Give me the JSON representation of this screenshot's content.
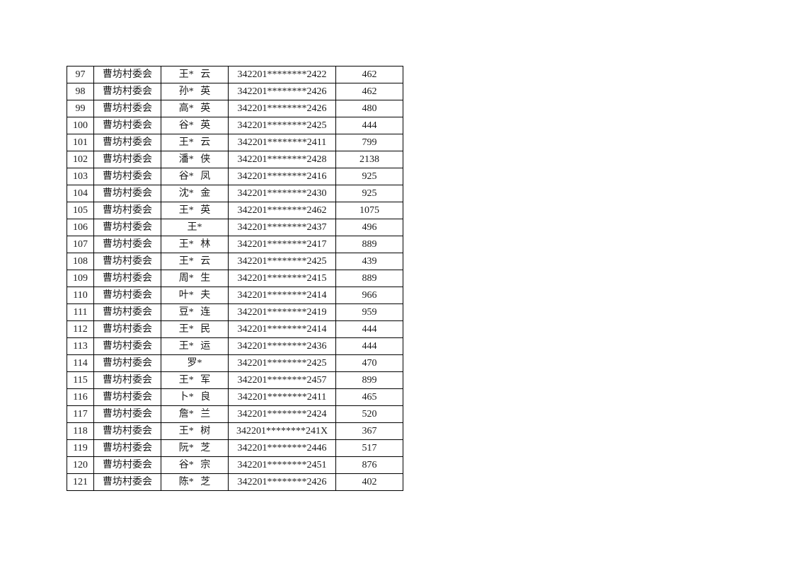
{
  "page": {
    "background_color": "#ffffff",
    "text_color": "#1a1a1a",
    "border_color": "#000000"
  },
  "table": {
    "village_name": "曹坊村委会",
    "row_number_range": {
      "first": "97",
      "last": "121"
    },
    "rows": [
      {
        "num": "97",
        "village": "曹坊村委会",
        "name": "王* 云",
        "id": "342201********2422",
        "amount": "462"
      },
      {
        "num": "98",
        "village": "曹坊村委会",
        "name": "孙* 英",
        "id": "342201********2426",
        "amount": "462"
      },
      {
        "num": "99",
        "village": "曹坊村委会",
        "name": "高* 英",
        "id": "342201********2426",
        "amount": "480"
      },
      {
        "num": "100",
        "village": "曹坊村委会",
        "name": "谷* 英",
        "id": "342201********2425",
        "amount": "444"
      },
      {
        "num": "101",
        "village": "曹坊村委会",
        "name": "王* 云",
        "id": "342201********2411",
        "amount": "799"
      },
      {
        "num": "102",
        "village": "曹坊村委会",
        "name": "潘* 侠",
        "id": "342201********2428",
        "amount": "2138"
      },
      {
        "num": "103",
        "village": "曹坊村委会",
        "name": "谷* 凤",
        "id": "342201********2416",
        "amount": "925"
      },
      {
        "num": "104",
        "village": "曹坊村委会",
        "name": "沈* 金",
        "id": "342201********2430",
        "amount": "925"
      },
      {
        "num": "105",
        "village": "曹坊村委会",
        "name": "王* 英",
        "id": "342201********2462",
        "amount": "1075"
      },
      {
        "num": "106",
        "village": "曹坊村委会",
        "name": "王*",
        "id": "342201********2437",
        "amount": "496"
      },
      {
        "num": "107",
        "village": "曹坊村委会",
        "name": "王* 林",
        "id": "342201********2417",
        "amount": "889"
      },
      {
        "num": "108",
        "village": "曹坊村委会",
        "name": "王* 云",
        "id": "342201********2425",
        "amount": "439"
      },
      {
        "num": "109",
        "village": "曹坊村委会",
        "name": "周* 生",
        "id": "342201********2415",
        "amount": "889"
      },
      {
        "num": "110",
        "village": "曹坊村委会",
        "name": "叶* 夫",
        "id": "342201********2414",
        "amount": "966"
      },
      {
        "num": "111",
        "village": "曹坊村委会",
        "name": "豆* 连",
        "id": "342201********2419",
        "amount": "959"
      },
      {
        "num": "112",
        "village": "曹坊村委会",
        "name": "王* 民",
        "id": "342201********2414",
        "amount": "444"
      },
      {
        "num": "113",
        "village": "曹坊村委会",
        "name": "王* 运",
        "id": "342201********2436",
        "amount": "444"
      },
      {
        "num": "114",
        "village": "曹坊村委会",
        "name": "罗*",
        "id": "342201********2425",
        "amount": "470"
      },
      {
        "num": "115",
        "village": "曹坊村委会",
        "name": "王* 军",
        "id": "342201********2457",
        "amount": "899"
      },
      {
        "num": "116",
        "village": "曹坊村委会",
        "name": "卜* 良",
        "id": "342201********2411",
        "amount": "465"
      },
      {
        "num": "117",
        "village": "曹坊村委会",
        "name": "詹* 兰",
        "id": "342201********2424",
        "amount": "520"
      },
      {
        "num": "118",
        "village": "曹坊村委会",
        "name": "王* 树",
        "id": "342201********241X",
        "amount": "367"
      },
      {
        "num": "119",
        "village": "曹坊村委会",
        "name": "阮* 芝",
        "id": "342201********2446",
        "amount": "517"
      },
      {
        "num": "120",
        "village": "曹坊村委会",
        "name": "谷* 宗",
        "id": "342201********2451",
        "amount": "876"
      },
      {
        "num": "121",
        "village": "曹坊村委会",
        "name": "陈* 芝",
        "id": "342201********2426",
        "amount": "402"
      }
    ]
  }
}
